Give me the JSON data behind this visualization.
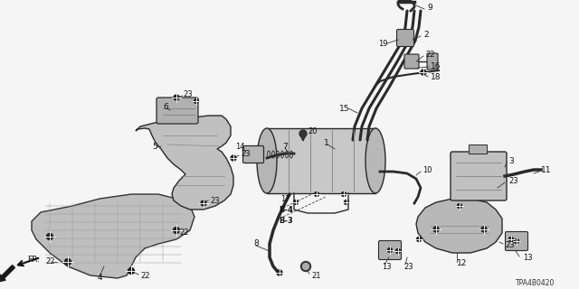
{
  "diagram_id": "TPA4B0420",
  "bg_color": "#f0f0f0",
  "line_color": "#1a1a1a",
  "text_color": "#111111",
  "figsize": [
    6.4,
    3.2
  ],
  "dpi": 100,
  "ax_bg": "#f0f0f0"
}
